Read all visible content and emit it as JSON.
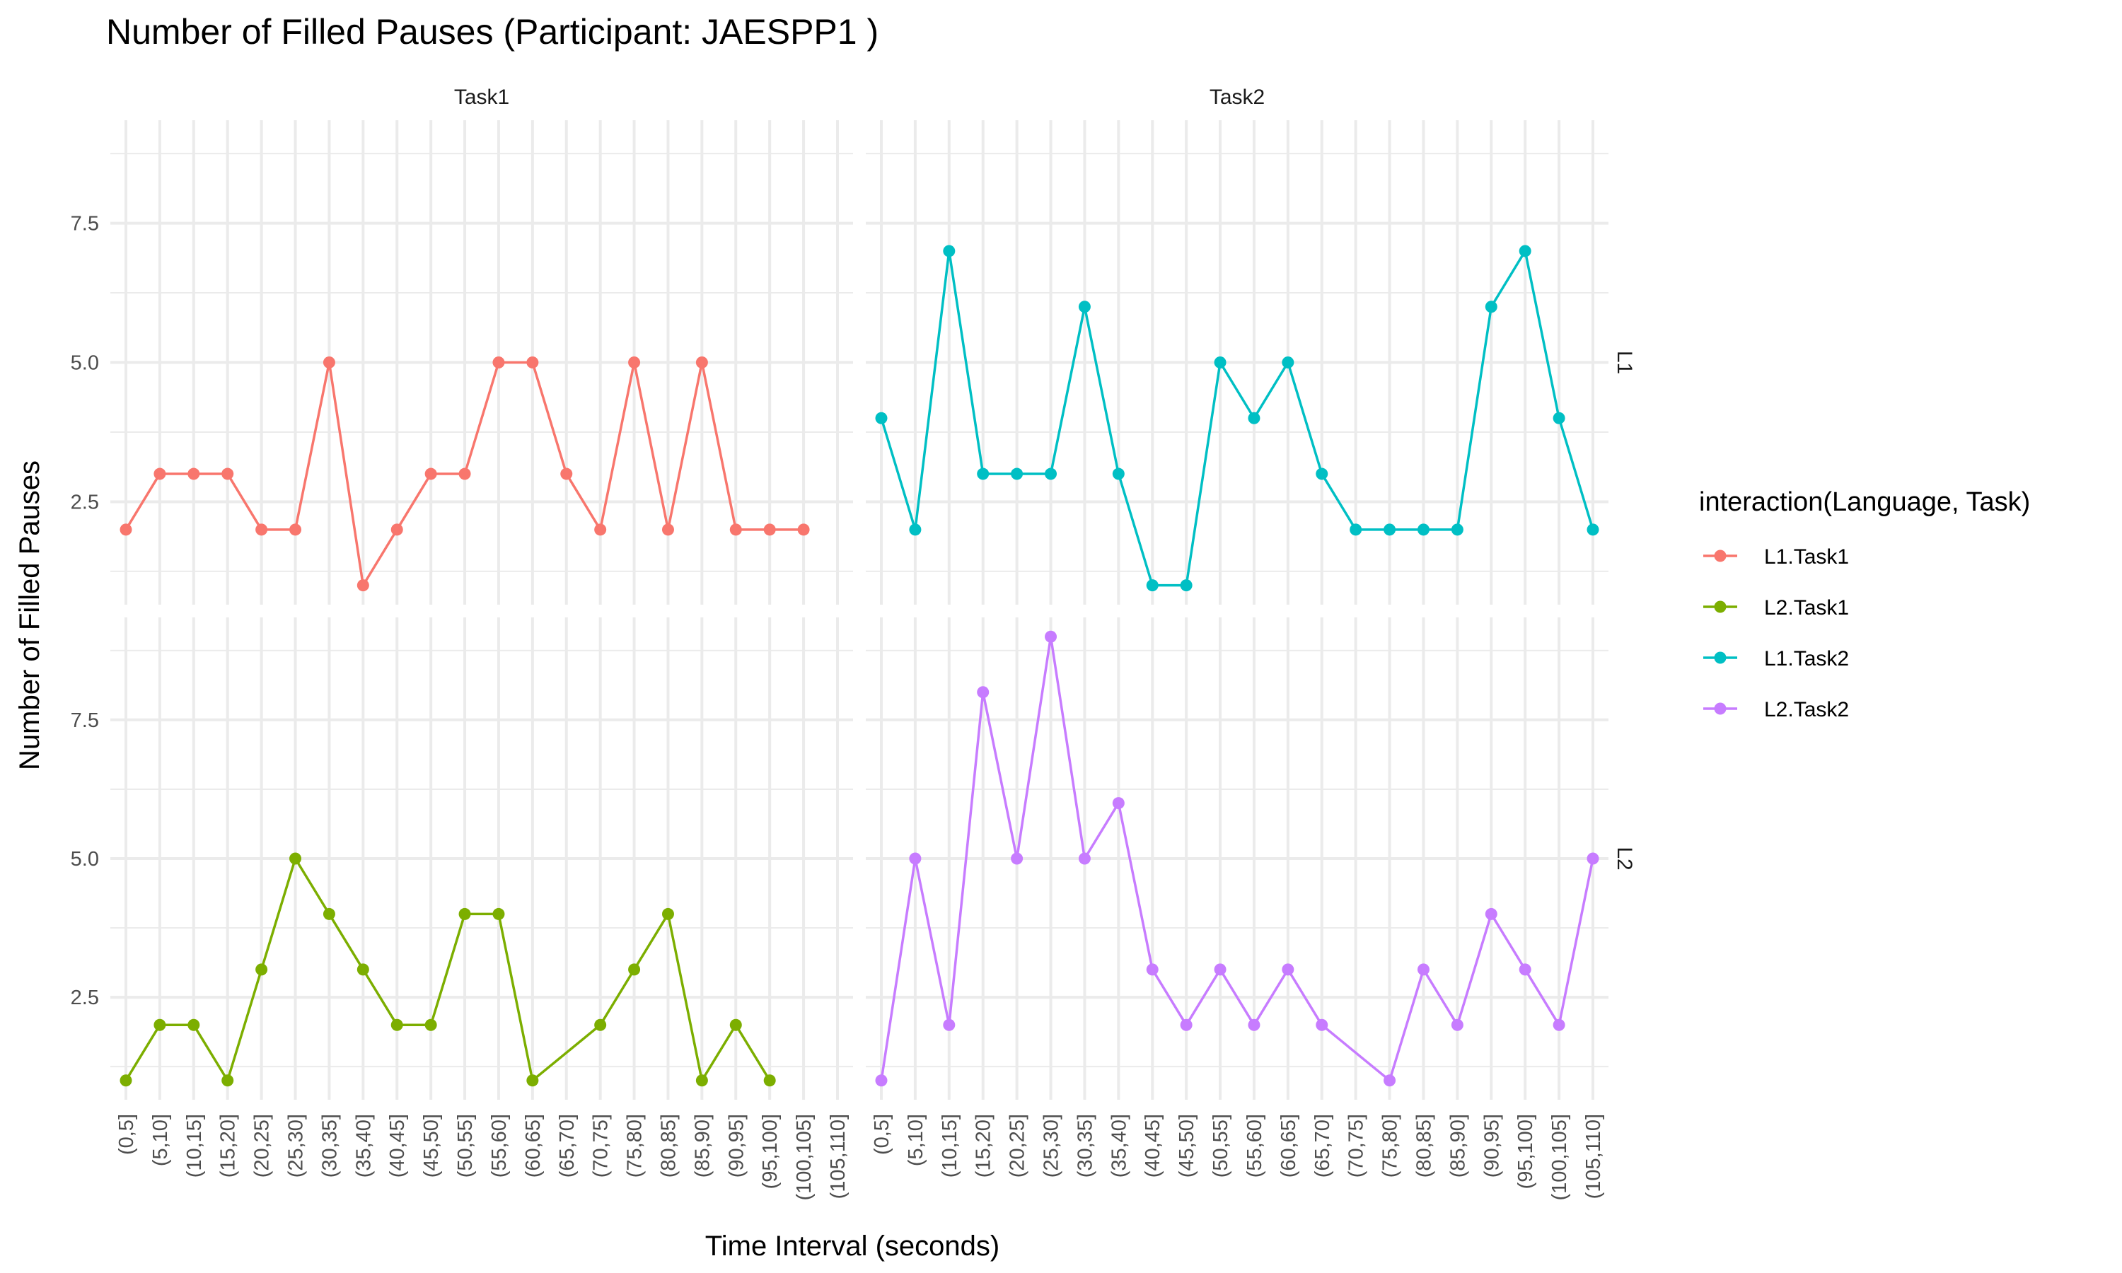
{
  "chart_data": {
    "type": "line",
    "title": "Number of Filled Pauses (Participant: JAESPP1 )",
    "xlabel": "Time Interval (seconds)",
    "ylabel": "Number of Filled Pauses",
    "facet_columns": [
      "Task1",
      "Task2"
    ],
    "facet_rows": [
      "L1",
      "L2"
    ],
    "categories": [
      "(0,5]",
      "(5,10]",
      "(10,15]",
      "(15,20]",
      "(20,25]",
      "(25,30]",
      "(30,35]",
      "(35,40]",
      "(40,45]",
      "(45,50]",
      "(50,55]",
      "(55,60]",
      "(60,65]",
      "(65,70]",
      "(70,75]",
      "(75,80]",
      "(80,85]",
      "(85,90]",
      "(90,95]",
      "(95,100]",
      "(100,105]",
      "(105,110]"
    ],
    "y_ticks": [
      2.5,
      5.0,
      7.5
    ],
    "y_tick_labels": [
      "2.5",
      "5.0",
      "7.5"
    ],
    "ylim": [
      1,
      9
    ],
    "grid": true,
    "legend": {
      "title": "interaction(Language, Task)",
      "position": "right"
    },
    "series": [
      {
        "name": "L1.Task1",
        "row": "L1",
        "col": "Task1",
        "color": "#F8766D",
        "points": [
          [
            "(0,5]",
            2
          ],
          [
            "(5,10]",
            3
          ],
          [
            "(10,15]",
            3
          ],
          [
            "(15,20]",
            3
          ],
          [
            "(20,25]",
            2
          ],
          [
            "(25,30]",
            2
          ],
          [
            "(30,35]",
            5
          ],
          [
            "(35,40]",
            1
          ],
          [
            "(40,45]",
            2
          ],
          [
            "(45,50]",
            3
          ],
          [
            "(50,55]",
            3
          ],
          [
            "(55,60]",
            5
          ],
          [
            "(60,65]",
            5
          ],
          [
            "(65,70]",
            3
          ],
          [
            "(70,75]",
            2
          ],
          [
            "(75,80]",
            5
          ],
          [
            "(80,85]",
            2
          ],
          [
            "(85,90]",
            5
          ],
          [
            "(90,95]",
            2
          ],
          [
            "(95,100]",
            2
          ],
          [
            "(100,105]",
            2
          ]
        ]
      },
      {
        "name": "L2.Task1",
        "row": "L2",
        "col": "Task1",
        "color": "#7CAE00",
        "points": [
          [
            "(0,5]",
            1
          ],
          [
            "(5,10]",
            2
          ],
          [
            "(10,15]",
            2
          ],
          [
            "(15,20]",
            1
          ],
          [
            "(20,25]",
            3
          ],
          [
            "(25,30]",
            5
          ],
          [
            "(30,35]",
            4
          ],
          [
            "(35,40]",
            3
          ],
          [
            "(40,45]",
            2
          ],
          [
            "(45,50]",
            2
          ],
          [
            "(50,55]",
            4
          ],
          [
            "(55,60]",
            4
          ],
          [
            "(60,65]",
            1
          ],
          [
            "(70,75]",
            2
          ],
          [
            "(75,80]",
            3
          ],
          [
            "(80,85]",
            4
          ],
          [
            "(85,90]",
            1
          ],
          [
            "(90,95]",
            2
          ],
          [
            "(95,100]",
            1
          ]
        ]
      },
      {
        "name": "L1.Task2",
        "row": "L1",
        "col": "Task2",
        "color": "#00BFC4",
        "points": [
          [
            "(0,5]",
            4
          ],
          [
            "(5,10]",
            2
          ],
          [
            "(10,15]",
            7
          ],
          [
            "(15,20]",
            3
          ],
          [
            "(20,25]",
            3
          ],
          [
            "(25,30]",
            3
          ],
          [
            "(30,35]",
            6
          ],
          [
            "(35,40]",
            3
          ],
          [
            "(40,45]",
            1
          ],
          [
            "(45,50]",
            1
          ],
          [
            "(50,55]",
            5
          ],
          [
            "(55,60]",
            4
          ],
          [
            "(60,65]",
            5
          ],
          [
            "(65,70]",
            3
          ],
          [
            "(70,75]",
            2
          ],
          [
            "(75,80]",
            2
          ],
          [
            "(80,85]",
            2
          ],
          [
            "(85,90]",
            2
          ],
          [
            "(90,95]",
            6
          ],
          [
            "(95,100]",
            7
          ],
          [
            "(100,105]",
            4
          ],
          [
            "(105,110]",
            2
          ]
        ]
      },
      {
        "name": "L2.Task2",
        "row": "L2",
        "col": "Task2",
        "color": "#C77CFF",
        "points": [
          [
            "(0,5]",
            1
          ],
          [
            "(5,10]",
            5
          ],
          [
            "(10,15]",
            2
          ],
          [
            "(15,20]",
            8
          ],
          [
            "(20,25]",
            5
          ],
          [
            "(25,30]",
            9
          ],
          [
            "(30,35]",
            5
          ],
          [
            "(35,40]",
            6
          ],
          [
            "(40,45]",
            3
          ],
          [
            "(45,50]",
            2
          ],
          [
            "(50,55]",
            3
          ],
          [
            "(55,60]",
            2
          ],
          [
            "(60,65]",
            3
          ],
          [
            "(65,70]",
            2
          ],
          [
            "(75,80]",
            1
          ],
          [
            "(80,85]",
            3
          ],
          [
            "(85,90]",
            2
          ],
          [
            "(90,95]",
            4
          ],
          [
            "(95,100]",
            3
          ],
          [
            "(100,105]",
            2
          ],
          [
            "(105,110]",
            5
          ]
        ]
      }
    ]
  }
}
